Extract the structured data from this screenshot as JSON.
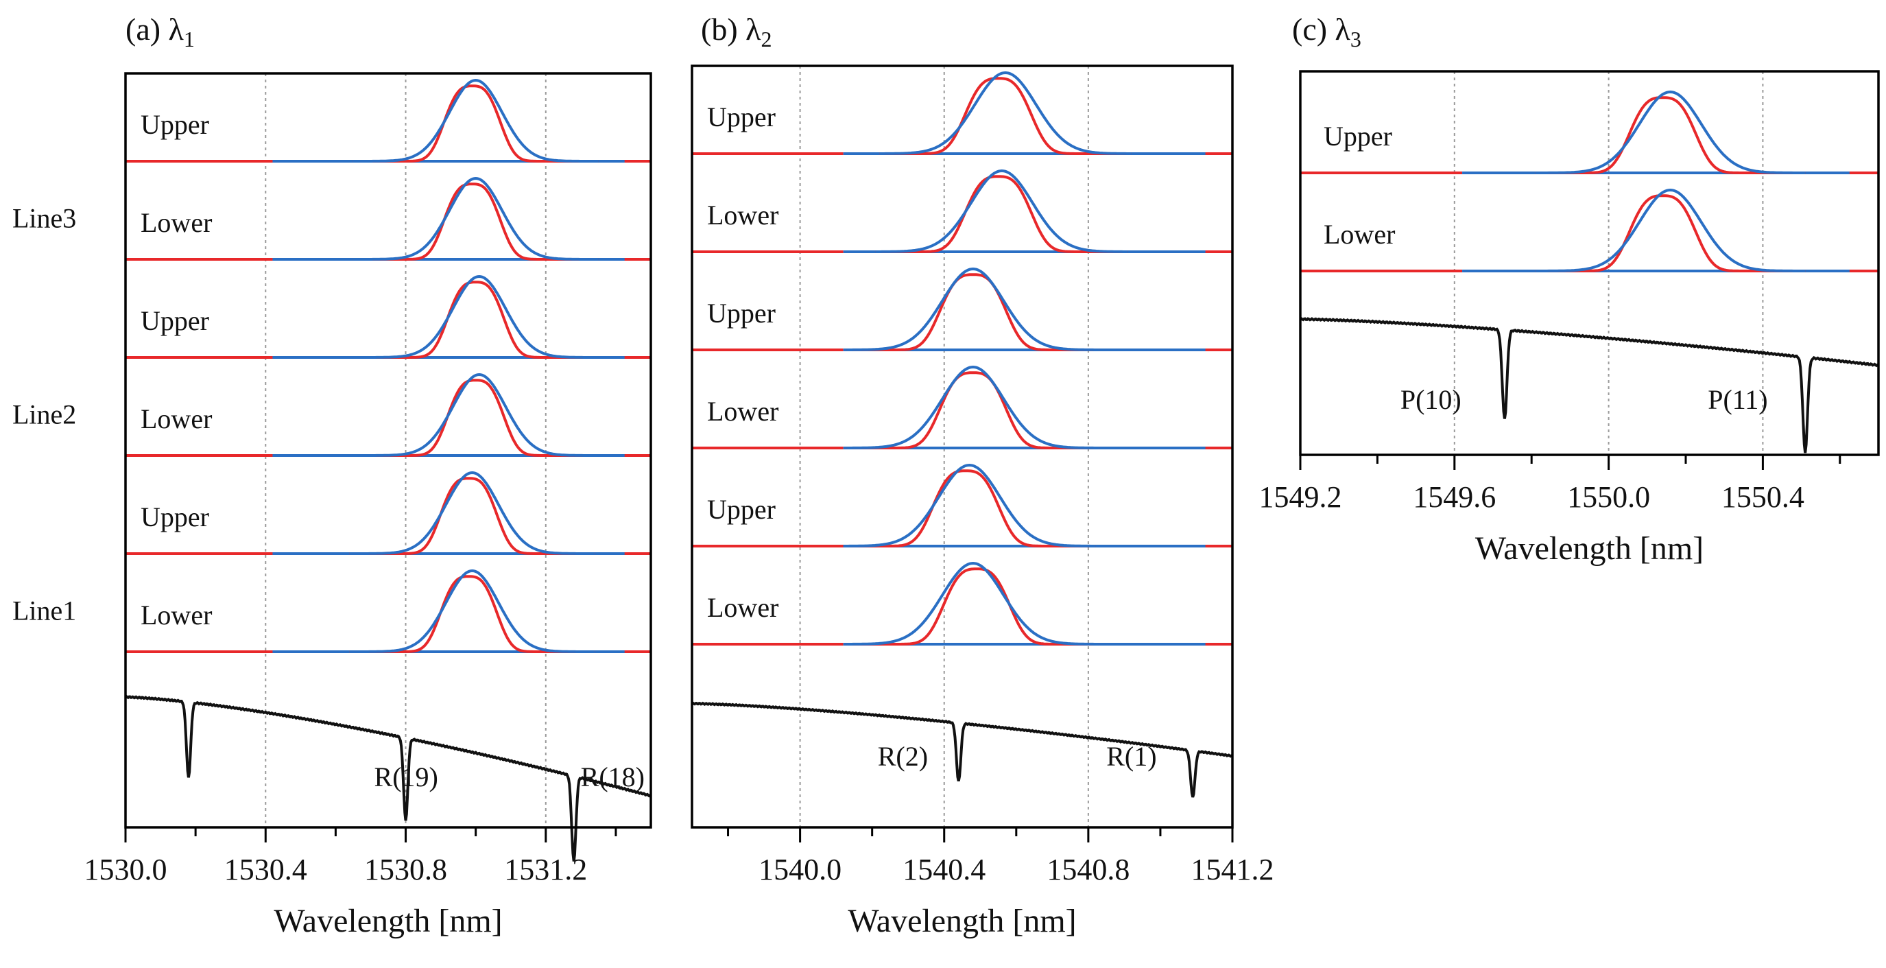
{
  "figure": {
    "background": "#ffffff",
    "colors": {
      "measured": "#e8282a",
      "fit": "#2a6fc4",
      "reference": "#111111"
    }
  },
  "chart_data": [
    {
      "type": "line",
      "title": "(a) λ",
      "title_subscript": "1",
      "xlabel": "Wavelength [nm]",
      "xlim": [
        1530.0,
        1531.5
      ],
      "xticks": [
        1530.0,
        1530.4,
        1530.8,
        1531.2
      ],
      "xtick_labels": [
        "1530.0",
        "1530.4",
        "1530.8",
        "1531.2"
      ],
      "minor_ticks": [
        1530.2,
        1530.6,
        1531.0,
        1531.4
      ],
      "gridlines": [
        1530.4,
        1530.8,
        1531.2
      ],
      "legend": "none",
      "group_labels": [
        {
          "label": "Line3",
          "rows": [
            0,
            1
          ]
        },
        {
          "label": "Line2",
          "rows": [
            2,
            3
          ]
        },
        {
          "label": "Line1",
          "rows": [
            4,
            5
          ]
        }
      ],
      "traces": [
        {
          "label": "Upper",
          "fit_center": 1531.0,
          "fit_width": 0.075,
          "measured_center": 1530.99,
          "measured_width": 0.07
        },
        {
          "label": "Lower",
          "fit_center": 1531.0,
          "fit_width": 0.075,
          "measured_center": 1530.99,
          "measured_width": 0.07
        },
        {
          "label": "Upper",
          "fit_center": 1531.01,
          "fit_width": 0.075,
          "measured_center": 1531.0,
          "measured_width": 0.07
        },
        {
          "label": "Lower",
          "fit_center": 1531.01,
          "fit_width": 0.075,
          "measured_center": 1531.0,
          "measured_width": 0.07
        },
        {
          "label": "Upper",
          "fit_center": 1530.99,
          "fit_width": 0.075,
          "measured_center": 1530.98,
          "measured_width": 0.07
        },
        {
          "label": "Lower",
          "fit_center": 1530.99,
          "fit_width": 0.075,
          "measured_center": 1530.98,
          "measured_width": 0.07
        }
      ],
      "reference": {
        "start_level": 0.92,
        "end_level": 0.2,
        "dips": [
          {
            "x": 1530.18,
            "depth": 0.55,
            "label": ""
          },
          {
            "x": 1530.8,
            "depth": 0.6,
            "label": "R(19)"
          },
          {
            "x": 1531.28,
            "depth": 0.62,
            "label": "R(18)"
          }
        ]
      }
    },
    {
      "type": "line",
      "title": "(b) λ",
      "title_subscript": "2",
      "xlabel": "Wavelength [nm]",
      "xlim": [
        1539.7,
        1541.2
      ],
      "xticks": [
        1540.0,
        1540.4,
        1540.8,
        1541.2
      ],
      "xtick_labels": [
        "1540.0",
        "1540.4",
        "1540.8",
        "1541.2"
      ],
      "minor_ticks": [
        1539.8,
        1540.2,
        1540.6,
        1541.0
      ],
      "gridlines": [
        1540.0,
        1540.4,
        1540.8
      ],
      "legend": "none",
      "traces": [
        {
          "label": "Upper",
          "fit_center": 1540.57,
          "fit_width": 0.085,
          "measured_center": 1540.55,
          "measured_width": 0.08
        },
        {
          "label": "Lower",
          "fit_center": 1540.56,
          "fit_width": 0.085,
          "measured_center": 1540.55,
          "measured_width": 0.08
        },
        {
          "label": "Upper",
          "fit_center": 1540.48,
          "fit_width": 0.085,
          "measured_center": 1540.48,
          "measured_width": 0.08
        },
        {
          "label": "Lower",
          "fit_center": 1540.48,
          "fit_width": 0.085,
          "measured_center": 1540.48,
          "measured_width": 0.08
        },
        {
          "label": "Upper",
          "fit_center": 1540.47,
          "fit_width": 0.085,
          "measured_center": 1540.46,
          "measured_width": 0.08
        },
        {
          "label": "Lower",
          "fit_center": 1540.48,
          "fit_width": 0.085,
          "measured_center": 1540.49,
          "measured_width": 0.08
        }
      ],
      "reference": {
        "start_level": 0.85,
        "end_level": 0.4,
        "dips": [
          {
            "x": 1540.44,
            "depth": 0.5,
            "label": "R(2)"
          },
          {
            "x": 1541.09,
            "depth": 0.4,
            "label": "R(1)"
          }
        ]
      }
    },
    {
      "type": "line",
      "title": "(c) λ",
      "title_subscript": "3",
      "xlabel": "Wavelength [nm]",
      "xlim": [
        1549.2,
        1550.7
      ],
      "xticks": [
        1549.2,
        1549.6,
        1550.0,
        1550.4
      ],
      "xtick_labels": [
        "1549.2",
        "1549.6",
        "1550.0",
        "1550.4"
      ],
      "minor_ticks": [
        1549.4,
        1549.8,
        1550.2,
        1550.6
      ],
      "gridlines": [
        1549.6,
        1550.0,
        1550.4
      ],
      "legend": "none",
      "traces": [
        {
          "label": "Upper",
          "fit_center": 1550.16,
          "fit_width": 0.08,
          "measured_center": 1550.14,
          "measured_width": 0.075
        },
        {
          "label": "Lower",
          "fit_center": 1550.16,
          "fit_width": 0.08,
          "measured_center": 1550.14,
          "measured_width": 0.075
        }
      ],
      "reference": {
        "start_level": 0.88,
        "end_level": 0.56,
        "dips": [
          {
            "x": 1549.73,
            "depth": 0.62,
            "label": "P(10)"
          },
          {
            "x": 1550.51,
            "depth": 0.66,
            "label": "P(11)"
          }
        ]
      }
    }
  ]
}
